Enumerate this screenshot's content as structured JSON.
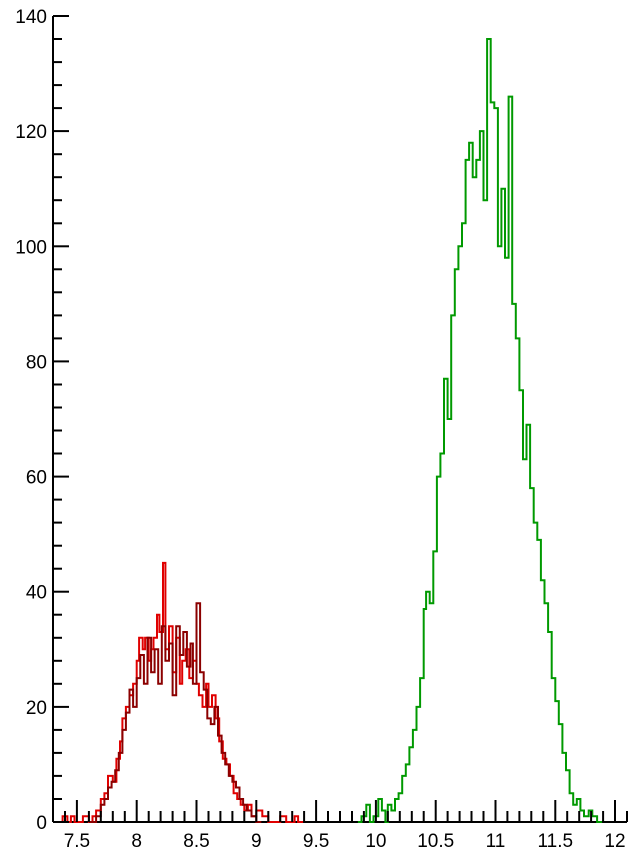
{
  "chart_data": {
    "type": "step-histogram",
    "xlim": [
      7.3,
      12.1
    ],
    "ylim": [
      0,
      140
    ],
    "x_ticks": [
      "7.5",
      "8",
      "8.5",
      "9",
      "9.5",
      "10",
      "10.5",
      "11",
      "11.5",
      "12"
    ],
    "x_tick_values": [
      7.5,
      8,
      8.5,
      9,
      9.5,
      10,
      10.5,
      11,
      11.5,
      12
    ],
    "y_ticks": [
      "0",
      "20",
      "40",
      "60",
      "80",
      "100",
      "120",
      "140"
    ],
    "y_tick_values": [
      0,
      20,
      40,
      60,
      80,
      100,
      120,
      140
    ],
    "grid": false,
    "series": [
      {
        "color": "#e00000",
        "points": [
          [
            7.3,
            0
          ],
          [
            7.38,
            1
          ],
          [
            7.42,
            0
          ],
          [
            7.45,
            1
          ],
          [
            7.48,
            0
          ],
          [
            7.55,
            1
          ],
          [
            7.6,
            0
          ],
          [
            7.63,
            1
          ],
          [
            7.66,
            2
          ],
          [
            7.7,
            4
          ],
          [
            7.73,
            5
          ],
          [
            7.76,
            8
          ],
          [
            7.8,
            7
          ],
          [
            7.83,
            11
          ],
          [
            7.86,
            14
          ],
          [
            7.88,
            18
          ],
          [
            7.91,
            20
          ],
          [
            7.94,
            22
          ],
          [
            7.97,
            24
          ],
          [
            8.0,
            28
          ],
          [
            8.02,
            32
          ],
          [
            8.05,
            30
          ],
          [
            8.07,
            32
          ],
          [
            8.1,
            28
          ],
          [
            8.12,
            30
          ],
          [
            8.14,
            32
          ],
          [
            8.17,
            36
          ],
          [
            8.19,
            33
          ],
          [
            8.22,
            45
          ],
          [
            8.24,
            30
          ],
          [
            8.27,
            34
          ],
          [
            8.3,
            26
          ],
          [
            8.33,
            32
          ],
          [
            8.36,
            24
          ],
          [
            8.38,
            28
          ],
          [
            8.41,
            30
          ],
          [
            8.44,
            25
          ],
          [
            8.47,
            28
          ],
          [
            8.5,
            24
          ],
          [
            8.52,
            22
          ],
          [
            8.55,
            20
          ],
          [
            8.58,
            24
          ],
          [
            8.6,
            20
          ],
          [
            8.63,
            22
          ],
          [
            8.66,
            18
          ],
          [
            8.69,
            14
          ],
          [
            8.72,
            11
          ],
          [
            8.75,
            10
          ],
          [
            8.78,
            8
          ],
          [
            8.81,
            5
          ],
          [
            8.84,
            4
          ],
          [
            8.87,
            3
          ],
          [
            8.9,
            2
          ],
          [
            8.93,
            3
          ],
          [
            8.96,
            1
          ],
          [
            9.0,
            2
          ],
          [
            9.05,
            1
          ],
          [
            9.1,
            0
          ],
          [
            9.2,
            1
          ],
          [
            9.25,
            0
          ],
          [
            9.32,
            1
          ],
          [
            9.35,
            0
          ]
        ]
      },
      {
        "color": "#8b0000",
        "points": [
          [
            7.6,
            0
          ],
          [
            7.66,
            1
          ],
          [
            7.7,
            3
          ],
          [
            7.73,
            4
          ],
          [
            7.76,
            6
          ],
          [
            7.79,
            7
          ],
          [
            7.82,
            9
          ],
          [
            7.85,
            12
          ],
          [
            7.88,
            16
          ],
          [
            7.91,
            19
          ],
          [
            7.94,
            23
          ],
          [
            7.97,
            20
          ],
          [
            8.0,
            25
          ],
          [
            8.03,
            29
          ],
          [
            8.06,
            24
          ],
          [
            8.09,
            32
          ],
          [
            8.12,
            26
          ],
          [
            8.15,
            30
          ],
          [
            8.18,
            24
          ],
          [
            8.21,
            34
          ],
          [
            8.24,
            28
          ],
          [
            8.27,
            31
          ],
          [
            8.3,
            22
          ],
          [
            8.33,
            34
          ],
          [
            8.36,
            29
          ],
          [
            8.39,
            33
          ],
          [
            8.42,
            27
          ],
          [
            8.45,
            31
          ],
          [
            8.47,
            24
          ],
          [
            8.5,
            38
          ],
          [
            8.53,
            26
          ],
          [
            8.56,
            23
          ],
          [
            8.59,
            18
          ],
          [
            8.62,
            17
          ],
          [
            8.65,
            20
          ],
          [
            8.68,
            15
          ],
          [
            8.71,
            12
          ],
          [
            8.74,
            10
          ],
          [
            8.77,
            8
          ],
          [
            8.8,
            7
          ],
          [
            8.83,
            6
          ],
          [
            8.86,
            4
          ],
          [
            8.89,
            3
          ],
          [
            8.92,
            2
          ],
          [
            8.96,
            1
          ],
          [
            9.0,
            0
          ]
        ]
      },
      {
        "color": "#009900",
        "points": [
          [
            9.85,
            0
          ],
          [
            9.88,
            1
          ],
          [
            9.92,
            3
          ],
          [
            9.95,
            0
          ],
          [
            9.98,
            1
          ],
          [
            10.02,
            4
          ],
          [
            10.05,
            2
          ],
          [
            10.08,
            0
          ],
          [
            10.1,
            3
          ],
          [
            10.13,
            2
          ],
          [
            10.16,
            4
          ],
          [
            10.19,
            5
          ],
          [
            10.22,
            8
          ],
          [
            10.25,
            10
          ],
          [
            10.28,
            13
          ],
          [
            10.31,
            16
          ],
          [
            10.34,
            20
          ],
          [
            10.37,
            25
          ],
          [
            10.4,
            37
          ],
          [
            10.42,
            40
          ],
          [
            10.45,
            38
          ],
          [
            10.48,
            47
          ],
          [
            10.51,
            60
          ],
          [
            10.54,
            64
          ],
          [
            10.57,
            77
          ],
          [
            10.6,
            70
          ],
          [
            10.63,
            88
          ],
          [
            10.66,
            96
          ],
          [
            10.69,
            100
          ],
          [
            10.72,
            104
          ],
          [
            10.75,
            115
          ],
          [
            10.78,
            118
          ],
          [
            10.81,
            112
          ],
          [
            10.84,
            115
          ],
          [
            10.87,
            120
          ],
          [
            10.9,
            108
          ],
          [
            10.93,
            136
          ],
          [
            10.96,
            125
          ],
          [
            10.99,
            124
          ],
          [
            11.02,
            100
          ],
          [
            11.05,
            110
          ],
          [
            11.08,
            98
          ],
          [
            11.11,
            126
          ],
          [
            11.14,
            90
          ],
          [
            11.17,
            84
          ],
          [
            11.2,
            75
          ],
          [
            11.23,
            63
          ],
          [
            11.26,
            69
          ],
          [
            11.29,
            58
          ],
          [
            11.32,
            52
          ],
          [
            11.35,
            49
          ],
          [
            11.38,
            42
          ],
          [
            11.41,
            38
          ],
          [
            11.44,
            33
          ],
          [
            11.47,
            25
          ],
          [
            11.5,
            21
          ],
          [
            11.53,
            17
          ],
          [
            11.56,
            12
          ],
          [
            11.59,
            9
          ],
          [
            11.62,
            5
          ],
          [
            11.65,
            3
          ],
          [
            11.68,
            4
          ],
          [
            11.71,
            2
          ],
          [
            11.74,
            1
          ],
          [
            11.78,
            2
          ],
          [
            11.81,
            1
          ],
          [
            11.85,
            0
          ]
        ]
      }
    ]
  }
}
